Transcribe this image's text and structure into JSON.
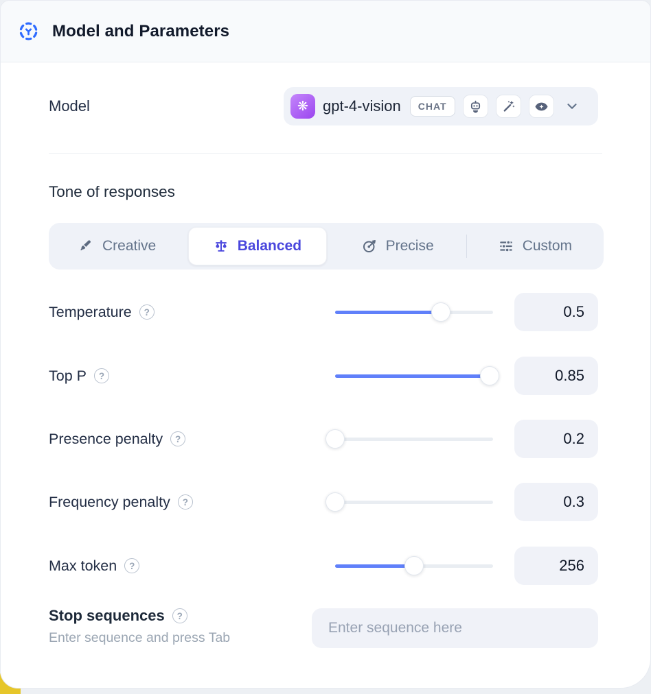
{
  "header": {
    "title": "Model and Parameters"
  },
  "model_row": {
    "label": "Model",
    "selector": {
      "model_name": "gpt-4-vision",
      "model_icon_glyph": "❋",
      "type_badge": "CHAT",
      "capability_icons": [
        "robot-icon",
        "magic-wand-icon",
        "vision-eye-icon"
      ]
    }
  },
  "tone": {
    "heading": "Tone of responses",
    "selected_tab": "Balanced",
    "tabs": [
      {
        "label": "Creative",
        "icon": "paintbrush-icon",
        "active": false
      },
      {
        "label": "Balanced",
        "icon": "balance-scale-icon",
        "active": true
      },
      {
        "label": "Precise",
        "icon": "target-icon",
        "active": false
      },
      {
        "label": "Custom",
        "icon": "sliders-icon",
        "active": false
      }
    ]
  },
  "parameters": [
    {
      "label": "Temperature",
      "value": "0.5",
      "percent": 67
    },
    {
      "label": "Top P",
      "value": "0.85",
      "percent": 98
    },
    {
      "label": "Presence penalty",
      "value": "0.2",
      "percent": 0
    },
    {
      "label": "Frequency penalty",
      "value": "0.3",
      "percent": 0
    },
    {
      "label": "Max token",
      "value": "256",
      "percent": 50
    }
  ],
  "stop_sequences": {
    "label": "Stop sequences",
    "hint": "Enter sequence and press Tab",
    "placeholder": "Enter sequence here"
  },
  "icons": {
    "help_glyph": "?"
  },
  "colors": {
    "slider_accent": "#6080fa",
    "active_tab_text": "#4a47dd",
    "header_icon_blue": "#2e6bff",
    "model_avatar_purple": "#9b45ef",
    "corner_accent_yellow": "#e6c62a",
    "field_background": "#f0f2f8"
  }
}
